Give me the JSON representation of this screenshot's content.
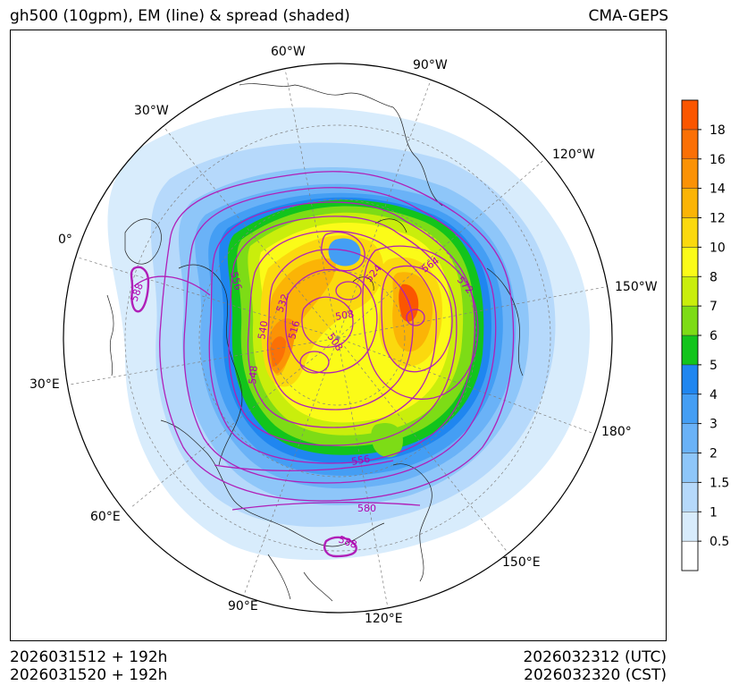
{
  "header": {
    "title_left": "gh500 (10gpm), EM (line) & spread (shaded)",
    "title_right": "CMA-GEPS"
  },
  "footer": {
    "left_line1": "2026031512 + 192h",
    "left_line2": "2026031520 + 192h",
    "right_line1": "2026032312 (UTC)",
    "right_line2": "2026032320 (CST)"
  },
  "map": {
    "projection": "north-polar-stereographic",
    "longitude_labels": [
      "60°W",
      "90°W",
      "30°W",
      "120°W",
      "0°",
      "150°W",
      "30°E",
      "180°",
      "60°E",
      "150°E",
      "90°E",
      "120°E"
    ],
    "contour_labels": [
      "556",
      "588",
      "532",
      "540",
      "516",
      "508",
      "524",
      "564",
      "572",
      "508",
      "548",
      "556",
      "580",
      "588"
    ]
  },
  "colorbar": {
    "tick_labels": [
      "0.5",
      "1",
      "1.5",
      "2",
      "3",
      "4",
      "5",
      "6",
      "7",
      "8",
      "10",
      "12",
      "14",
      "16",
      "18"
    ],
    "colors": [
      "#ffffff",
      "#d8ecfc",
      "#b6d9fb",
      "#8ec6f9",
      "#6ab2f7",
      "#449ef4",
      "#1f86f0",
      "#12c41c",
      "#7ddc16",
      "#c9ee0c",
      "#fbfb18",
      "#fbd90e",
      "#fbb406",
      "#fb9206",
      "#fb7006",
      "#fb5600"
    ]
  }
}
